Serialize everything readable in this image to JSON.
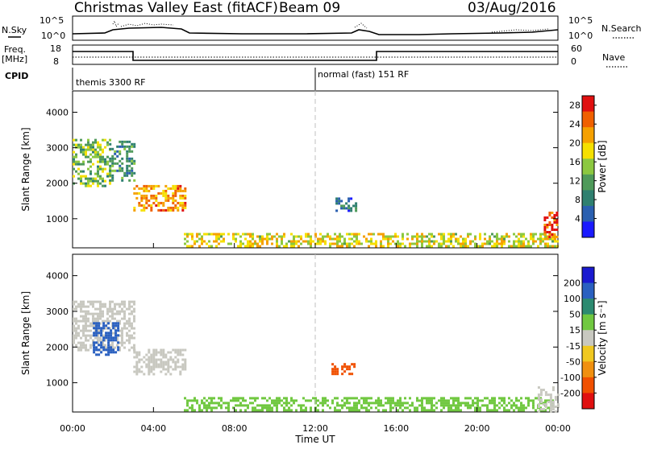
{
  "header": {
    "title": "Christmas Valley East (fitACF)",
    "beam": "Beam 09",
    "date": "03/Aug/2016"
  },
  "top_strip": {
    "nsky_label": "N.Sky",
    "nsearch_label": "N.Search",
    "freq_label_1": "Freq.",
    "freq_label_2": "[MHz]",
    "nave_label": "Nave",
    "cpid_label": "CPID",
    "left_ticks_1": [
      "10^5",
      "10^0"
    ],
    "right_ticks_1": [
      "10^5",
      "10^0"
    ],
    "left_ticks_2": [
      "18",
      "8"
    ],
    "right_ticks_2": [
      "60",
      "0"
    ],
    "cpid_1": "themis 3300 RF",
    "cpid_2": "normal (fast) 151 RF"
  },
  "colors": {
    "power_scale": [
      "#1a1aff",
      "#2a5fb0",
      "#2f8070",
      "#4f9a5a",
      "#8cc840",
      "#f5e000",
      "#f5a000",
      "#f06000",
      "#e01010"
    ],
    "velocity_scale": [
      "#1a1ad0",
      "#2a60c0",
      "#2c8a70",
      "#70c840",
      "#c8c8c0",
      "#f0c820",
      "#f09010",
      "#f05000",
      "#e01010"
    ]
  },
  "chart_data": [
    {
      "type": "heatmap",
      "title": "Power",
      "xlabel": "Time UT",
      "ylabel": "Slant Range [km]",
      "x_ticks": [
        "00:00",
        "04:00",
        "08:00",
        "12:00",
        "16:00",
        "20:00",
        "00:00"
      ],
      "xlim_hours": [
        0,
        24
      ],
      "y_ticks": [
        1000,
        2000,
        3000,
        4000
      ],
      "ylim": [
        180,
        4600
      ],
      "colorbar": {
        "label": "Power [dB]",
        "ticks": [
          4,
          8,
          12,
          16,
          20,
          24,
          28
        ],
        "range": [
          0,
          30
        ]
      },
      "regions": [
        {
          "x": [
            0.0,
            1.8
          ],
          "y": [
            1950,
            3250
          ],
          "value": 14
        },
        {
          "x": [
            1.8,
            3.0
          ],
          "y": [
            2050,
            3200
          ],
          "value": 10
        },
        {
          "x": [
            3.0,
            5.6
          ],
          "y": [
            1250,
            1950
          ],
          "value": 22
        },
        {
          "x": [
            5.5,
            24.0
          ],
          "y": [
            200,
            600
          ],
          "value": 18
        },
        {
          "x": [
            13.0,
            14.0
          ],
          "y": [
            1250,
            1600
          ],
          "value": 8
        },
        {
          "x": [
            23.3,
            24.0
          ],
          "y": [
            500,
            1200
          ],
          "value": 26
        }
      ]
    },
    {
      "type": "heatmap",
      "title": "Velocity",
      "xlabel": "Time UT",
      "ylabel": "Slant Range [km]",
      "x_ticks": [
        "00:00",
        "04:00",
        "08:00",
        "12:00",
        "16:00",
        "20:00",
        "00:00"
      ],
      "xlim_hours": [
        0,
        24
      ],
      "y_ticks": [
        1000,
        2000,
        3000,
        4000
      ],
      "ylim": [
        180,
        4600
      ],
      "colorbar": {
        "label": "Velocity [m s⁻¹]",
        "ticks": [
          200,
          100,
          50,
          15,
          -15,
          -50,
          -100,
          -200
        ],
        "range": [
          -250,
          250
        ]
      },
      "regions": [
        {
          "x": [
            0.0,
            3.0
          ],
          "y": [
            1900,
            3300
          ],
          "value": 0
        },
        {
          "x": [
            1.0,
            2.2
          ],
          "y": [
            1800,
            2700
          ],
          "value": 180
        },
        {
          "x": [
            3.0,
            5.6
          ],
          "y": [
            1250,
            1950
          ],
          "value": 0
        },
        {
          "x": [
            5.5,
            24.0
          ],
          "y": [
            200,
            600
          ],
          "value": 40
        },
        {
          "x": [
            12.8,
            13.9
          ],
          "y": [
            1250,
            1550
          ],
          "value": -180
        },
        {
          "x": [
            23.0,
            24.0
          ],
          "y": [
            200,
            900
          ],
          "value": 0
        }
      ]
    }
  ]
}
